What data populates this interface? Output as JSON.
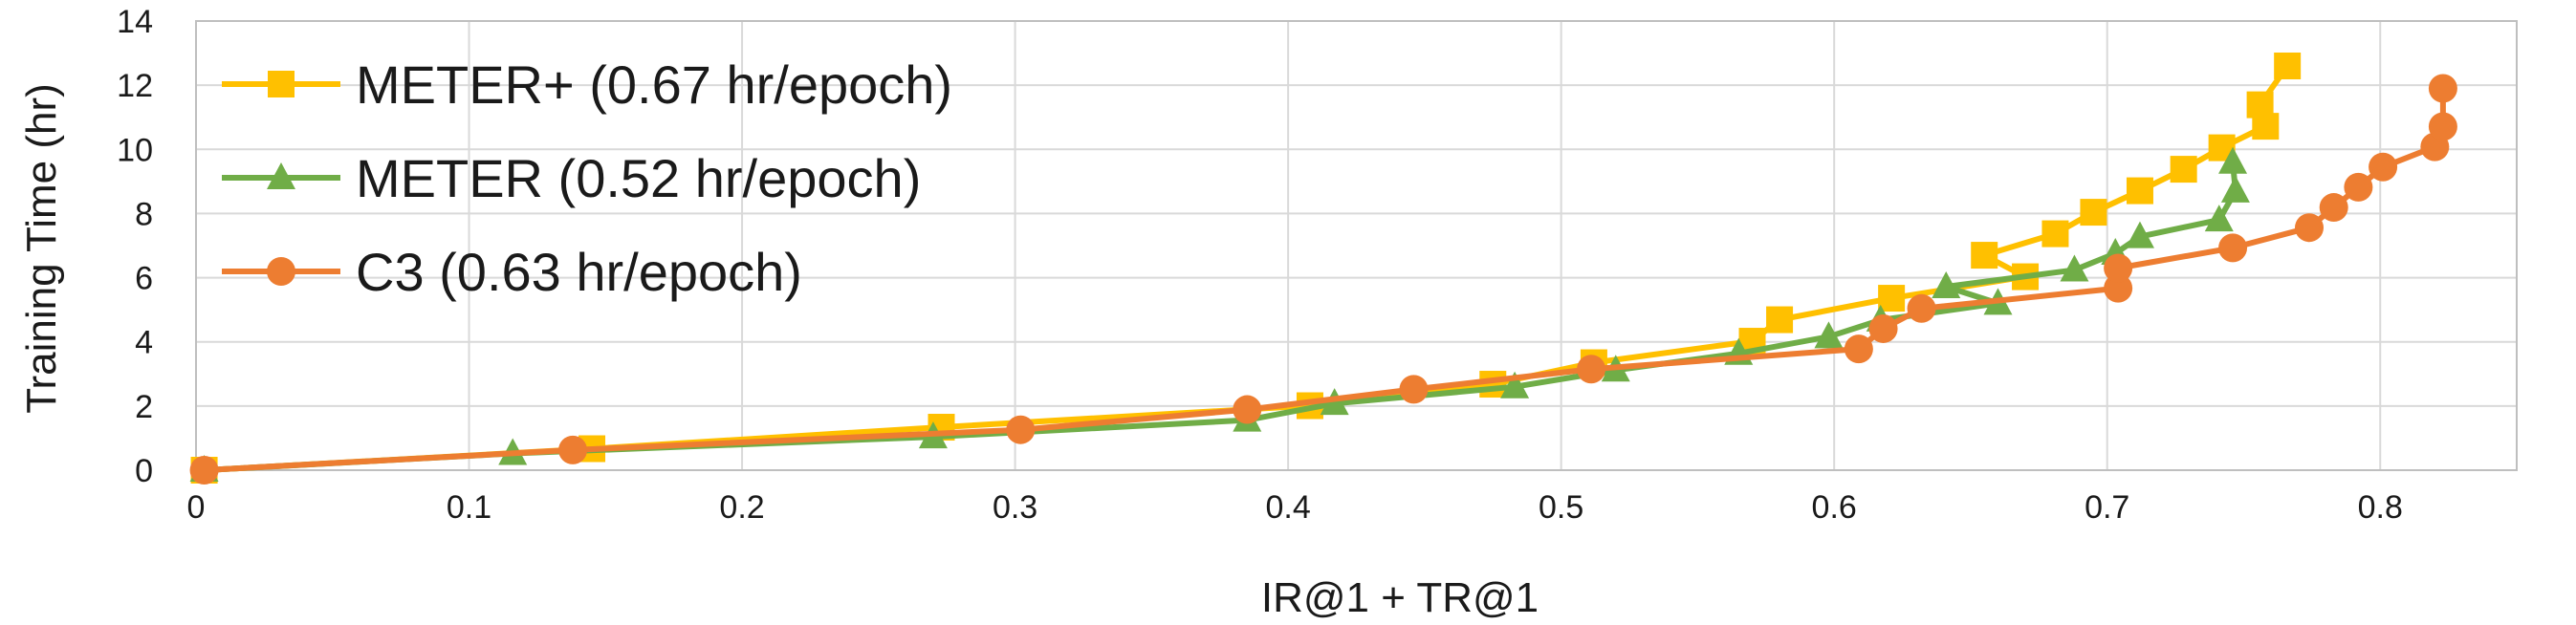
{
  "chart_data": {
    "type": "line",
    "title": "",
    "xlabel": "IR@1 + TR@1",
    "ylabel": "Training Time (hr)",
    "xlim": [
      0,
      0.85
    ],
    "ylim": [
      0,
      14
    ],
    "x_ticks": [
      0,
      0.1,
      0.2,
      0.3,
      0.4,
      0.5,
      0.6,
      0.7,
      0.8
    ],
    "x_tick_labels": [
      "0",
      "0.1",
      "0.2",
      "0.3",
      "0.4",
      "0.5",
      "0.6",
      "0.7",
      "0.8"
    ],
    "y_ticks": [
      0,
      2,
      4,
      6,
      8,
      10,
      12,
      14
    ],
    "y_tick_labels": [
      "0",
      "2",
      "4",
      "6",
      "8",
      "10",
      "12",
      "14"
    ],
    "grid": true,
    "legend_position": "top-left",
    "series": [
      {
        "name": "METER+ (0.67 hr/epoch)",
        "color": "#FFC000",
        "marker": "square",
        "points": [
          [
            0.003,
            0.0
          ],
          [
            0.145,
            0.67
          ],
          [
            0.273,
            1.34
          ],
          [
            0.408,
            2.01
          ],
          [
            0.475,
            2.68
          ],
          [
            0.512,
            3.35
          ],
          [
            0.57,
            4.02
          ],
          [
            0.58,
            4.69
          ],
          [
            0.621,
            5.36
          ],
          [
            0.67,
            6.03
          ],
          [
            0.655,
            6.7
          ],
          [
            0.681,
            7.37
          ],
          [
            0.695,
            8.04
          ],
          [
            0.712,
            8.71
          ],
          [
            0.728,
            9.38
          ],
          [
            0.742,
            10.05
          ],
          [
            0.758,
            10.72
          ],
          [
            0.756,
            11.39
          ],
          [
            0.766,
            12.6
          ]
        ]
      },
      {
        "name": "METER (0.52 hr/epoch)",
        "color": "#70AD47",
        "marker": "triangle",
        "points": [
          [
            0.003,
            0.0
          ],
          [
            0.116,
            0.52
          ],
          [
            0.27,
            1.04
          ],
          [
            0.385,
            1.56
          ],
          [
            0.417,
            2.08
          ],
          [
            0.483,
            2.6
          ],
          [
            0.52,
            3.12
          ],
          [
            0.565,
            3.64
          ],
          [
            0.598,
            4.16
          ],
          [
            0.617,
            4.68
          ],
          [
            0.66,
            5.2
          ],
          [
            0.641,
            5.72
          ],
          [
            0.688,
            6.24
          ],
          [
            0.703,
            6.76
          ],
          [
            0.712,
            7.28
          ],
          [
            0.741,
            7.8
          ],
          [
            0.747,
            8.7
          ],
          [
            0.746,
            9.6
          ]
        ]
      },
      {
        "name": "C3 (0.63 hr/epoch)",
        "color": "#ED7D31",
        "marker": "circle",
        "points": [
          [
            0.003,
            0.0
          ],
          [
            0.138,
            0.63
          ],
          [
            0.302,
            1.26
          ],
          [
            0.385,
            1.89
          ],
          [
            0.446,
            2.52
          ],
          [
            0.511,
            3.15
          ],
          [
            0.609,
            3.78
          ],
          [
            0.618,
            4.41
          ],
          [
            0.632,
            5.04
          ],
          [
            0.704,
            5.67
          ],
          [
            0.704,
            6.3
          ],
          [
            0.746,
            6.93
          ],
          [
            0.774,
            7.56
          ],
          [
            0.783,
            8.19
          ],
          [
            0.792,
            8.82
          ],
          [
            0.801,
            9.45
          ],
          [
            0.82,
            10.08
          ],
          [
            0.823,
            10.71
          ],
          [
            0.823,
            11.9
          ]
        ]
      }
    ]
  }
}
